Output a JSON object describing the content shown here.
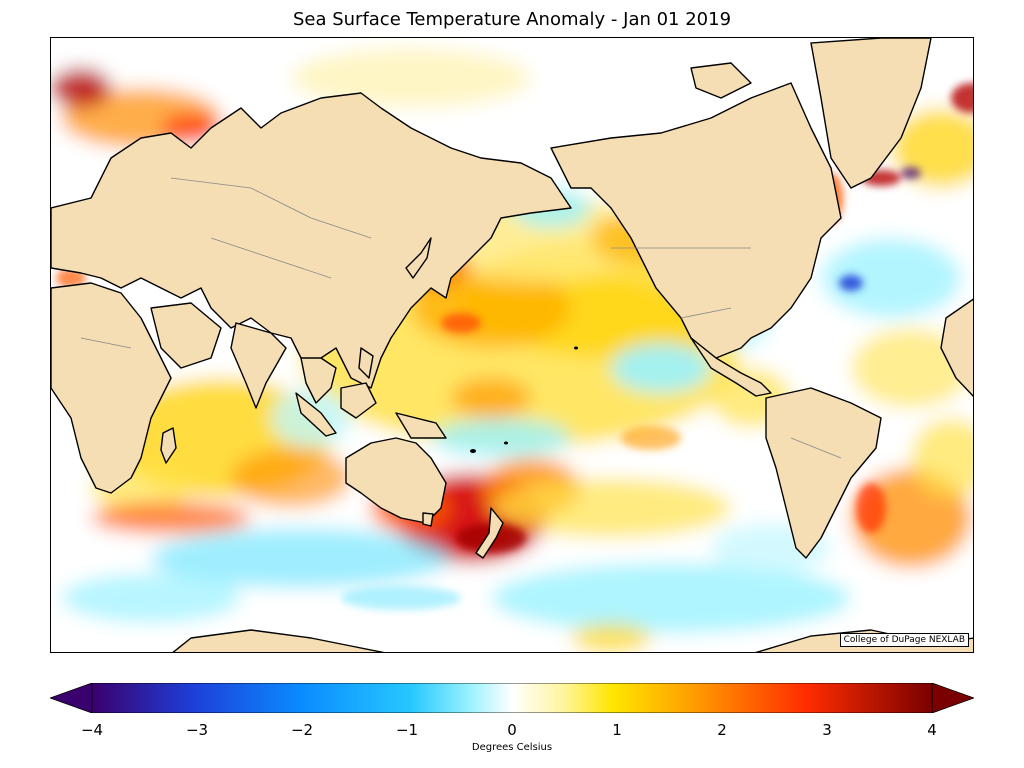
{
  "title": "Sea Surface Temperature Anomaly - Jan 01 2019",
  "credit": "College of DuPage NEXLAB",
  "colorbar": {
    "label": "Degrees Celsius",
    "min": -4,
    "max": 4,
    "ticks": [
      "−4",
      "−3",
      "−2",
      "−1",
      "0",
      "1",
      "2",
      "3",
      "4"
    ],
    "extend": "both",
    "colors": [
      "#3a006e",
      "#1d3fd8",
      "#0a8cff",
      "#27c8ff",
      "#9af2ff",
      "#ffffff",
      "#fff27a",
      "#ffd100",
      "#ff8c00",
      "#ff2d00",
      "#b40000",
      "#7a0000"
    ]
  },
  "map": {
    "projection": "Mercator (Pacific-centered)",
    "land_color": "#f5deb3",
    "coastline_color": "#000000",
    "border_color": "#888888"
  }
}
